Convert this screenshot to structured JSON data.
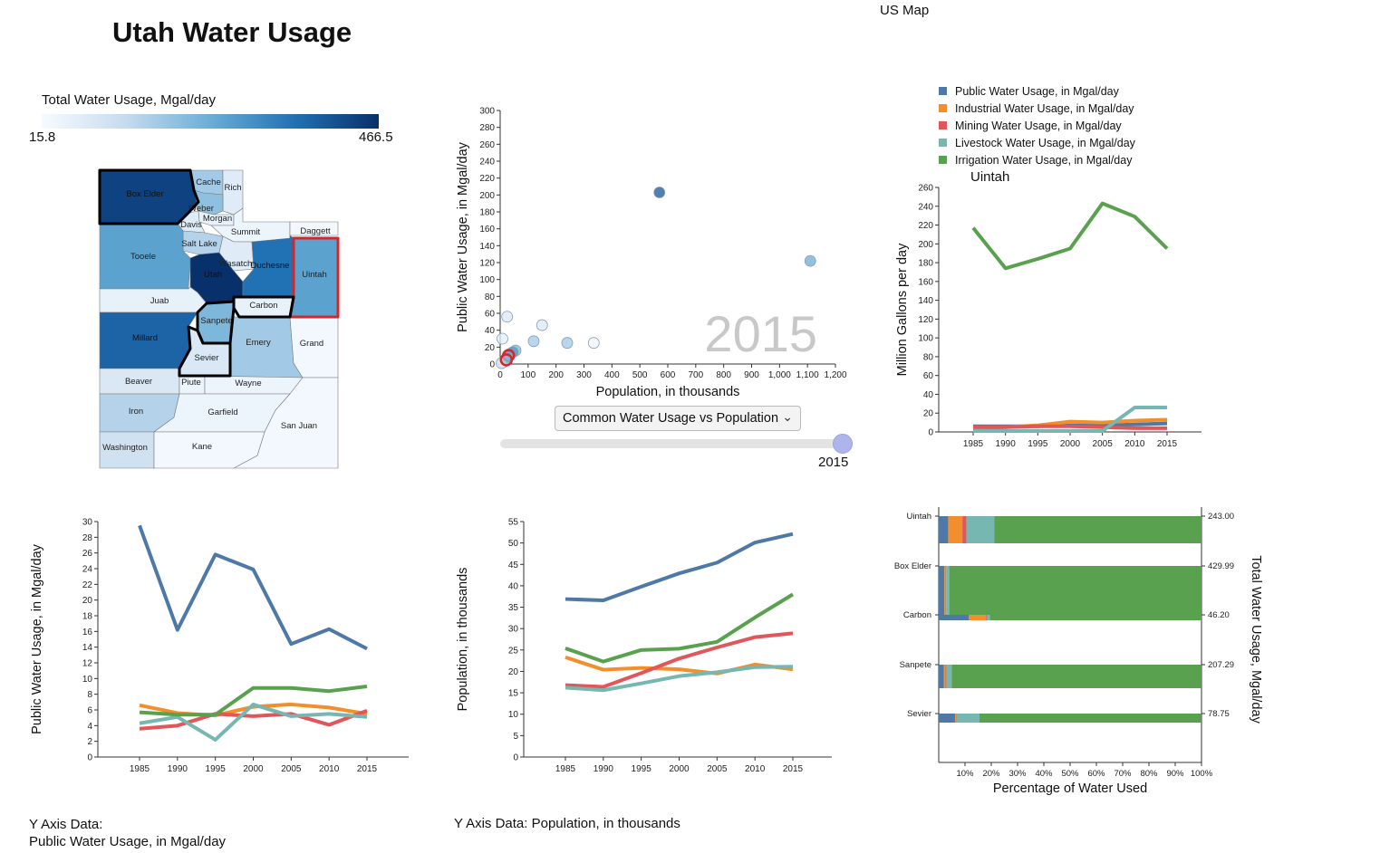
{
  "page": {
    "title": "Utah Water Usage",
    "us_map_link": "US Map"
  },
  "colors": {
    "public": "#4e79a7",
    "industrial": "#f28e2b",
    "mining": "#e15759",
    "livestock": "#76b7b2",
    "irrigation": "#59a14f",
    "highlight": "#d62728",
    "selected_border": "#000000"
  },
  "map_legend": {
    "title": "Total Water Usage, Mgal/day",
    "min": "15.8",
    "max": "466.5",
    "scale_colors": [
      "#f7fbff",
      "#c6dbef",
      "#6baed6",
      "#2171b5",
      "#08306b"
    ]
  },
  "counties": [
    {
      "name": "Box Elder",
      "level": 0.93,
      "selected": true
    },
    {
      "name": "Cache",
      "level": 0.35
    },
    {
      "name": "Rich",
      "level": 0.12
    },
    {
      "name": "Weber",
      "level": 0.4
    },
    {
      "name": "Morgan",
      "level": 0.08
    },
    {
      "name": "Davis",
      "level": 0.12
    },
    {
      "name": "Salt Lake",
      "level": 0.3
    },
    {
      "name": "Summit",
      "level": 0.05
    },
    {
      "name": "Daggett",
      "level": 0.02
    },
    {
      "name": "Tooele",
      "level": 0.55
    },
    {
      "name": "Utah",
      "level": 1.0
    },
    {
      "name": "Wasatch",
      "level": 0.12
    },
    {
      "name": "Duchesne",
      "level": 0.75
    },
    {
      "name": "Uintah",
      "level": 0.55,
      "highlighted": true
    },
    {
      "name": "Juab",
      "level": 0.08
    },
    {
      "name": "Carbon",
      "level": 0.08,
      "selected": true
    },
    {
      "name": "Millard",
      "level": 0.8
    },
    {
      "name": "Sanpete",
      "level": 0.45,
      "selected": true
    },
    {
      "name": "Emery",
      "level": 0.35
    },
    {
      "name": "Grand",
      "level": 0.02
    },
    {
      "name": "Sevier",
      "level": 0.15,
      "selected": true
    },
    {
      "name": "Beaver",
      "level": 0.15
    },
    {
      "name": "Piute",
      "level": 0.05
    },
    {
      "name": "Wayne",
      "level": 0.05
    },
    {
      "name": "Iron",
      "level": 0.3
    },
    {
      "name": "Garfield",
      "level": 0.05
    },
    {
      "name": "San Juan",
      "level": 0.02
    },
    {
      "name": "Washington",
      "level": 0.2
    },
    {
      "name": "Kane",
      "level": 0.02
    }
  ],
  "controls": {
    "dropdown_label": "Common Water Usage vs Population",
    "slider_value": "2015",
    "slider_fraction": 1.0
  },
  "chart_data": [
    {
      "id": "scatter",
      "type": "scatter",
      "xlabel": "Population, in thousands",
      "ylabel": "Public Water Usage, in Mgal/day",
      "xlim": [
        0,
        1200
      ],
      "ylim": [
        0,
        300
      ],
      "xticks": [
        "0",
        "100",
        "200",
        "300",
        "400",
        "500",
        "600",
        "700",
        "800",
        "900",
        "1,000",
        "1,100",
        "1,200"
      ],
      "yticks": [
        "0",
        "20",
        "40",
        "60",
        "80",
        "100",
        "120",
        "140",
        "160",
        "180",
        "200",
        "220",
        "240",
        "260",
        "280",
        "300"
      ],
      "year_watermark": "2015",
      "points": [
        {
          "x": 570,
          "y": 203,
          "level": 0.85
        },
        {
          "x": 1110,
          "y": 122,
          "level": 0.5
        },
        {
          "x": 25,
          "y": 56,
          "level": 0.15
        },
        {
          "x": 150,
          "y": 46,
          "level": 0.15
        },
        {
          "x": 8,
          "y": 30,
          "level": 0.1
        },
        {
          "x": 120,
          "y": 27,
          "level": 0.35
        },
        {
          "x": 240,
          "y": 25,
          "level": 0.35
        },
        {
          "x": 335,
          "y": 25,
          "level": 0.05
        },
        {
          "x": 55,
          "y": 16,
          "level": 0.45
        },
        {
          "x": 45,
          "y": 14,
          "level": 0.6
        },
        {
          "x": 35,
          "y": 12,
          "level": 0.6
        },
        {
          "x": 28,
          "y": 8,
          "level": 0.35
        },
        {
          "x": 20,
          "y": 6,
          "level": 0.75
        },
        {
          "x": 15,
          "y": 4,
          "level": 0.3
        },
        {
          "x": 10,
          "y": 2,
          "level": 0.2
        },
        {
          "x": 5,
          "y": 1,
          "level": 0.1
        },
        {
          "x": 30,
          "y": 10,
          "level": 0.55,
          "highlighted": true
        },
        {
          "x": 22,
          "y": 5,
          "level": 0.4,
          "highlighted": true
        }
      ]
    },
    {
      "id": "county-trend",
      "type": "line",
      "title": "Uintah",
      "ylabel": "Million Gallons per day",
      "x": [
        "1985",
        "1990",
        "1995",
        "2000",
        "2005",
        "2010",
        "2015"
      ],
      "ylim": [
        0,
        260
      ],
      "yticks": [
        "0",
        "20",
        "40",
        "60",
        "80",
        "100",
        "120",
        "140",
        "160",
        "180",
        "200",
        "220",
        "240",
        "260"
      ],
      "series": [
        {
          "name": "Public Water Usage, in Mgal/day",
          "key": "public",
          "values": [
            6,
            6,
            6,
            7,
            7,
            8,
            9
          ]
        },
        {
          "name": "Industrial Water Usage, in Mgal/day",
          "key": "industrial",
          "values": [
            4,
            5,
            7,
            11,
            10,
            12,
            13
          ]
        },
        {
          "name": "Mining Water Usage, in Mgal/day",
          "key": "mining",
          "values": [
            5,
            5,
            6,
            6,
            5,
            4,
            4
          ]
        },
        {
          "name": "Livestock Water Usage, in Mgal/day",
          "key": "livestock",
          "values": [
            1,
            1,
            1,
            1,
            1,
            26,
            26
          ]
        },
        {
          "name": "Irrigation Water Usage, in Mgal/day",
          "key": "irrigation",
          "values": [
            217,
            174,
            184,
            195,
            243,
            229,
            195
          ]
        }
      ]
    },
    {
      "id": "public-usage",
      "type": "line",
      "ylabel": "Public Water Usage, in Mgal/day",
      "x": [
        "1985",
        "1990",
        "1995",
        "2000",
        "2005",
        "2010",
        "2015"
      ],
      "ylim": [
        0,
        30
      ],
      "yticks": [
        "0",
        "2",
        "4",
        "6",
        "8",
        "10",
        "12",
        "14",
        "16",
        "18",
        "20",
        "22",
        "24",
        "26",
        "28",
        "30"
      ],
      "series": [
        {
          "key": "public",
          "values": [
            29.5,
            16.2,
            25.8,
            23.9,
            14.4,
            16.3,
            13.8
          ]
        },
        {
          "key": "industrial",
          "values": [
            6.6,
            5.6,
            5.3,
            6.4,
            6.7,
            6.3,
            5.5
          ]
        },
        {
          "key": "mining",
          "values": [
            3.6,
            4.0,
            5.5,
            5.2,
            5.5,
            4.1,
            5.9
          ]
        },
        {
          "key": "livestock",
          "values": [
            4.3,
            5.1,
            2.2,
            6.7,
            5.2,
            5.5,
            5.1
          ]
        },
        {
          "key": "irrigation",
          "values": [
            5.7,
            5.4,
            5.4,
            8.8,
            8.8,
            8.4,
            9.0
          ]
        }
      ]
    },
    {
      "id": "population",
      "type": "line",
      "ylabel": "Population, in thousands",
      "x": [
        "1985",
        "1990",
        "1995",
        "2000",
        "2005",
        "2010",
        "2015"
      ],
      "ylim": [
        0,
        55
      ],
      "yticks": [
        "0",
        "5",
        "10",
        "15",
        "20",
        "25",
        "30",
        "35",
        "40",
        "45",
        "50",
        "55"
      ],
      "series": [
        {
          "key": "public",
          "values": [
            36.9,
            36.6,
            39.8,
            42.9,
            45.4,
            50.1,
            52.1
          ]
        },
        {
          "key": "industrial",
          "values": [
            23.3,
            20.4,
            20.8,
            20.5,
            19.5,
            21.6,
            20.5
          ]
        },
        {
          "key": "mining",
          "values": [
            16.8,
            16.4,
            19.6,
            23.0,
            25.6,
            28.0,
            28.9
          ]
        },
        {
          "key": "livestock",
          "values": [
            16.2,
            15.6,
            17.2,
            18.9,
            19.8,
            21.0,
            21.1
          ]
        },
        {
          "key": "irrigation",
          "values": [
            25.4,
            22.3,
            25.0,
            25.3,
            26.9,
            32.6,
            38.0
          ]
        }
      ]
    },
    {
      "id": "usage-percent",
      "type": "bar",
      "xlabel": "Percentage of Water Used",
      "ylabel": "Total Water Usage, Mgal/day",
      "xticks": [
        "10%",
        "20%",
        "30%",
        "40%",
        "50%",
        "60%",
        "70%",
        "80%",
        "90%",
        "100%"
      ],
      "categories": [
        "Uintah",
        "Box Elder",
        "Carbon",
        "Sanpete",
        "Sevier"
      ],
      "totals": [
        "243.00",
        "429.99",
        "46.20",
        "207.29",
        "78.75"
      ],
      "series": [
        {
          "key": "public",
          "values": [
            3.6,
            2.1,
            11.5,
            2.0,
            6.2
          ]
        },
        {
          "key": "industrial",
          "values": [
            5.4,
            0.4,
            6.5,
            0.6,
            0.3
          ]
        },
        {
          "key": "mining",
          "values": [
            1.5,
            0.3,
            0.5,
            0.3,
            0.2
          ]
        },
        {
          "key": "livestock",
          "values": [
            10.7,
            1.2,
            1.0,
            2.0,
            8.8
          ]
        },
        {
          "key": "irrigation",
          "values": [
            78.8,
            96.0,
            80.5,
            95.1,
            84.5
          ]
        }
      ]
    }
  ],
  "footer": {
    "left_label": "Y Axis Data:",
    "left_value": "Public Water Usage, in Mgal/day",
    "mid_text": "Y Axis Data: Population, in thousands"
  }
}
